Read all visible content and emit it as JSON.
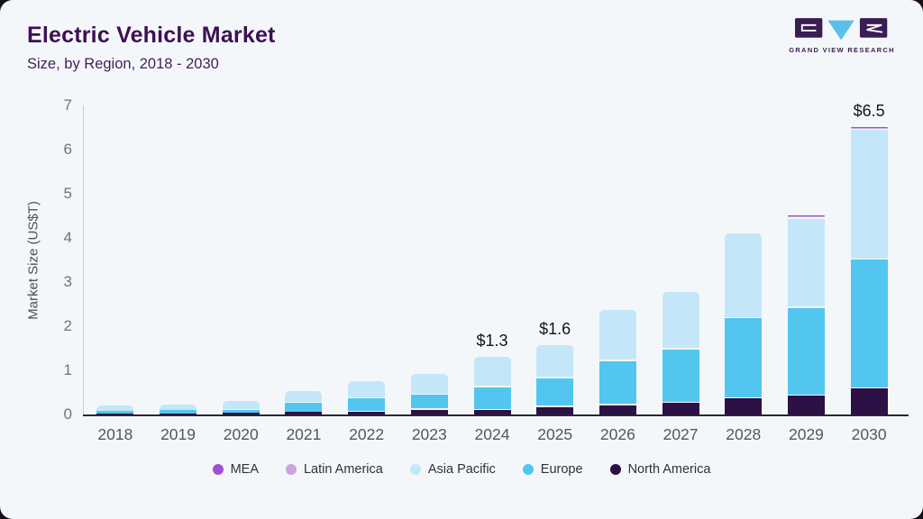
{
  "header": {
    "title": "Electric Vehicle Market",
    "subtitle": "Size, by Region, 2018 - 2030"
  },
  "logo": {
    "brand": "GRAND VIEW RESEARCH",
    "square_color": "#3a1d52",
    "triangle_color": "#5bc0e8"
  },
  "chart_data": {
    "type": "bar",
    "stacked": true,
    "title": "Electric Vehicle Market",
    "subtitle": "Size, by Region, 2018 - 2030",
    "xlabel": "",
    "ylabel": "Market Size (US$T)",
    "ylim": [
      0,
      7
    ],
    "yticks": [
      0,
      1,
      2,
      3,
      4,
      5,
      6,
      7
    ],
    "grid": false,
    "categories": [
      "2018",
      "2019",
      "2020",
      "2021",
      "2022",
      "2023",
      "2024",
      "2025",
      "2026",
      "2027",
      "2028",
      "2029",
      "2030"
    ],
    "series": [
      {
        "name": "North America",
        "color": "#2d1045",
        "values": [
          0.03,
          0.03,
          0.04,
          0.07,
          0.09,
          0.14,
          0.13,
          0.2,
          0.24,
          0.29,
          0.39,
          0.45,
          0.62
        ]
      },
      {
        "name": "Europe",
        "color": "#53c6f0",
        "values": [
          0.06,
          0.07,
          0.09,
          0.22,
          0.3,
          0.33,
          0.52,
          0.65,
          1.0,
          1.22,
          1.82,
          1.99,
          2.92
        ]
      },
      {
        "name": "Asia Pacific",
        "color": "#c3e7f8",
        "values": [
          0.11,
          0.12,
          0.17,
          0.25,
          0.36,
          0.45,
          0.65,
          0.73,
          1.13,
          1.26,
          1.89,
          2.02,
          2.93
        ]
      },
      {
        "name": "Latin America",
        "color": "#cda4e2",
        "values": [
          0,
          0,
          0,
          0,
          0,
          0,
          0,
          0,
          0,
          0,
          0,
          0.02,
          0.02
        ]
      },
      {
        "name": "MEA",
        "color": "#a050d0",
        "values": [
          0,
          0,
          0,
          0,
          0,
          0,
          0,
          0,
          0,
          0,
          0,
          0.02,
          0.02
        ]
      }
    ],
    "legend": {
      "position": "bottom",
      "order": [
        "MEA",
        "Latin America",
        "Asia Pacific",
        "Europe",
        "North America"
      ]
    },
    "annotations": [
      {
        "category": "2024",
        "label": "$1.3"
      },
      {
        "category": "2025",
        "label": "$1.6"
      },
      {
        "category": "2030",
        "label": "$6.5"
      }
    ]
  }
}
